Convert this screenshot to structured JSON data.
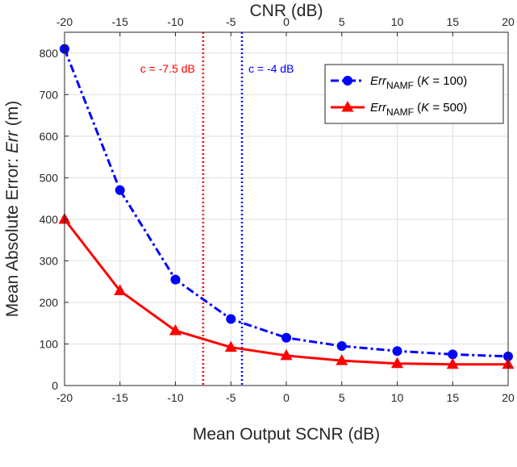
{
  "chart_data": {
    "type": "line",
    "xlabel": "Mean Output SCNR (dB)",
    "x2label": "CNR (dB)",
    "ylabel_prefix": "Mean Absolute Error: ",
    "ylabel_var": "Err",
    "ylabel_suffix": " (m)",
    "x": [
      -20,
      -15,
      -10,
      -5,
      0,
      5,
      10,
      15,
      20
    ],
    "xlim": [
      -20,
      20
    ],
    "ylim": [
      0,
      850
    ],
    "xticks": [
      -20,
      -15,
      -10,
      -5,
      0,
      5,
      10,
      15,
      20
    ],
    "x2ticks": [
      -20,
      -15,
      -10,
      -5,
      0,
      5,
      10,
      15,
      20
    ],
    "yticks": [
      0,
      100,
      200,
      300,
      400,
      500,
      600,
      700,
      800
    ],
    "grid": true,
    "legend_position": "top-right",
    "series": [
      {
        "legend_var": "Err",
        "legend_sub": "NAMF",
        "legend_open": " (",
        "legend_param": "K",
        "legend_val": " = 100)",
        "values": [
          810,
          470,
          255,
          160,
          115,
          95,
          83,
          75,
          70
        ],
        "color": "#0000ff",
        "marker": "circle",
        "line": "dash-dot"
      },
      {
        "legend_var": "Err",
        "legend_sub": "NAMF",
        "legend_open": " (",
        "legend_param": "K",
        "legend_val": " = 500)",
        "values": [
          400,
          228,
          132,
          92,
          72,
          60,
          53,
          51,
          51
        ],
        "color": "#ff0000",
        "marker": "triangle",
        "line": "solid"
      }
    ],
    "vlines": [
      {
        "x": -7.5,
        "label": "c = -7.5 dB",
        "color": "#ff0000"
      },
      {
        "x": -4,
        "label": "c = -4 dB",
        "color": "#0000ff"
      }
    ]
  }
}
